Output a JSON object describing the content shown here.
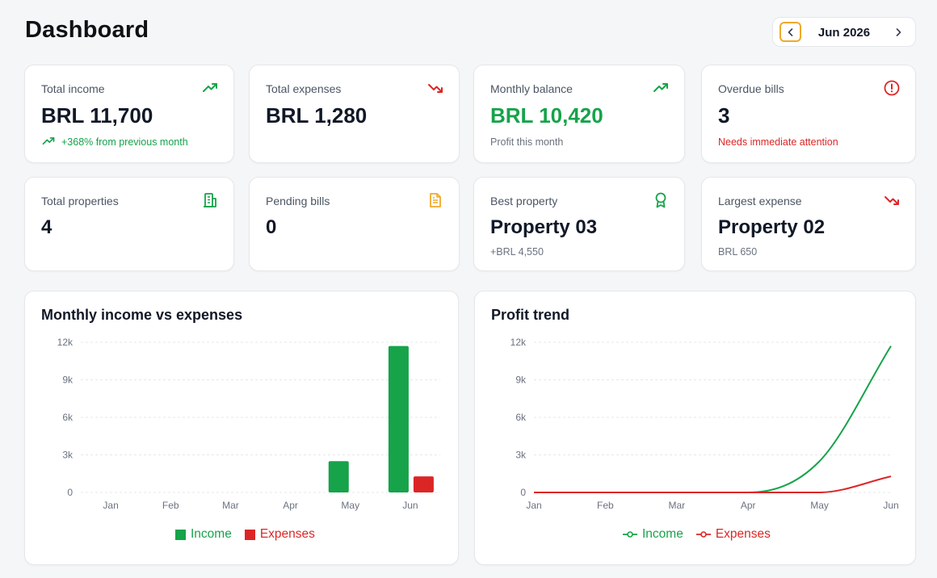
{
  "page": {
    "title": "Dashboard"
  },
  "month_picker": {
    "label": "Jun 2026"
  },
  "colors": {
    "green": "#16a34a",
    "red": "#dc2626",
    "amber": "#f0a92a"
  },
  "stats_row1": [
    {
      "label": "Total income",
      "value": "BRL 11,700",
      "sub": "+368% from previous month",
      "icon": "trending-up-icon"
    },
    {
      "label": "Total expenses",
      "value": "BRL 1,280",
      "icon": "trending-down-icon"
    },
    {
      "label": "Monthly balance",
      "value": "BRL 10,420",
      "sub": "Profit this month",
      "icon": "trending-up-icon"
    },
    {
      "label": "Overdue bills",
      "value": "3",
      "sub": "Needs immediate attention",
      "icon": "alert-circle-icon"
    }
  ],
  "stats_row2": [
    {
      "label": "Total properties",
      "value": "4",
      "icon": "building-icon"
    },
    {
      "label": "Pending bills",
      "value": "0",
      "icon": "document-icon"
    },
    {
      "label": "Best property",
      "value": "Property 03",
      "sub": "+BRL 4,550",
      "icon": "award-icon"
    },
    {
      "label": "Largest expense",
      "value": "Property 02",
      "sub": "BRL 650",
      "icon": "trending-down-icon"
    }
  ],
  "charts": {
    "bar_title": "Monthly income vs expenses",
    "line_title": "Profit trend",
    "legend": {
      "income": "Income",
      "expenses": "Expenses"
    }
  },
  "chart_data": [
    {
      "type": "bar",
      "title": "Monthly income vs expenses",
      "categories": [
        "Jan",
        "Feb",
        "Mar",
        "Apr",
        "May",
        "Jun"
      ],
      "series": [
        {
          "name": "Income",
          "values": [
            0,
            0,
            0,
            0,
            2500,
            11700
          ]
        },
        {
          "name": "Expenses",
          "values": [
            0,
            0,
            0,
            0,
            0,
            1280
          ]
        }
      ],
      "y_ticks": [
        "0",
        "3k",
        "6k",
        "9k",
        "12k"
      ],
      "ylim": [
        0,
        12000
      ],
      "grid": true,
      "legend": "bottom"
    },
    {
      "type": "line",
      "title": "Profit trend",
      "categories": [
        "Jan",
        "Feb",
        "Mar",
        "Apr",
        "May",
        "Jun"
      ],
      "series": [
        {
          "name": "Income",
          "values": [
            0,
            0,
            0,
            0,
            2500,
            11700
          ]
        },
        {
          "name": "Expenses",
          "values": [
            0,
            0,
            0,
            0,
            0,
            1280
          ]
        }
      ],
      "y_ticks": [
        "0",
        "3k",
        "6k",
        "9k",
        "12k"
      ],
      "ylim": [
        0,
        12000
      ],
      "grid": true,
      "legend": "bottom"
    }
  ]
}
